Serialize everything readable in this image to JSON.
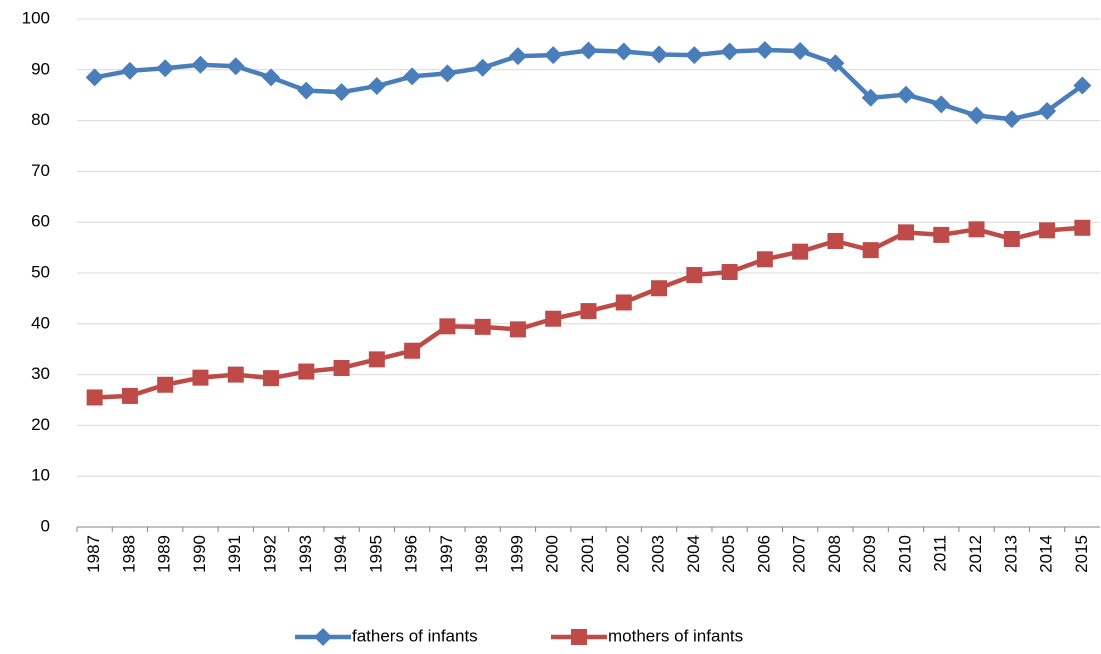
{
  "chart_data": {
    "type": "line",
    "categories": [
      "1987",
      "1988",
      "1989",
      "1990",
      "1991",
      "1992",
      "1993",
      "1994",
      "1995",
      "1996",
      "1997",
      "1998",
      "1999",
      "2000",
      "2001",
      "2002",
      "2003",
      "2004",
      "2005",
      "2006",
      "2007",
      "2008",
      "2009",
      "2010",
      "2011",
      "2012",
      "2013",
      "2014",
      "2015"
    ],
    "series": [
      {
        "name": "fathers of infants",
        "color": "#4a7ebb",
        "marker": "diamond",
        "values": [
          88.5,
          89.8,
          90.3,
          91.0,
          90.7,
          88.5,
          85.9,
          85.6,
          86.8,
          88.7,
          89.3,
          90.4,
          92.7,
          92.9,
          93.8,
          93.6,
          93.0,
          92.9,
          93.6,
          93.9,
          93.7,
          91.3,
          84.5,
          85.1,
          83.2,
          81.0,
          80.3,
          81.9,
          86.9
        ]
      },
      {
        "name": "mothers of infants",
        "color": "#be4b48",
        "marker": "square",
        "values": [
          25.5,
          25.8,
          28.0,
          29.4,
          30.0,
          29.3,
          30.6,
          31.3,
          33.0,
          34.7,
          39.5,
          39.4,
          38.9,
          41.0,
          42.5,
          44.2,
          47.0,
          49.6,
          50.2,
          52.7,
          54.2,
          56.3,
          54.5,
          58.0,
          57.5,
          58.6,
          56.7,
          58.4,
          58.9
        ]
      }
    ],
    "ylim": [
      0,
      100
    ],
    "yticks": [
      0,
      10,
      20,
      30,
      40,
      50,
      60,
      70,
      80,
      90,
      100
    ],
    "grid": true,
    "legend": "bottom"
  }
}
